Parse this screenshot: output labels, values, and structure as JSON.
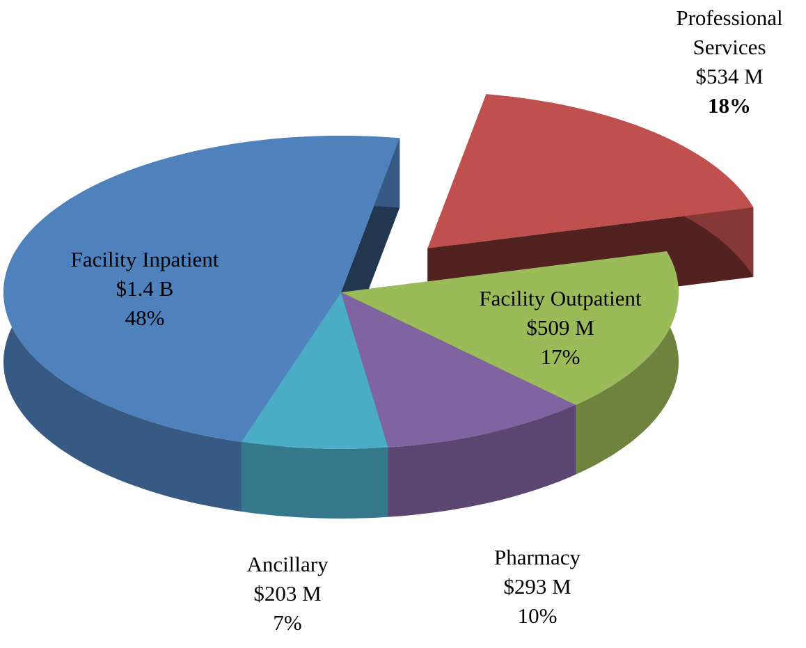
{
  "chart_data": {
    "type": "pie3d",
    "categories": [
      "Professional Services",
      "Facility Outpatient",
      "Pharmacy",
      "Ancillary",
      "Facility Inpatient"
    ],
    "values": [
      18,
      17,
      10,
      7,
      48
    ],
    "value_labels": [
      "18%",
      "17%",
      "10%",
      "7%",
      "48%"
    ],
    "amount_labels": [
      "$534 M",
      "$509 M",
      "$293 M",
      "$203 M",
      "$1.4 B"
    ],
    "colors": [
      "#c0504d",
      "#9bbb59",
      "#8064a2",
      "#4bacc6",
      "#4f81bd"
    ],
    "exploded": "Professional Services"
  }
}
